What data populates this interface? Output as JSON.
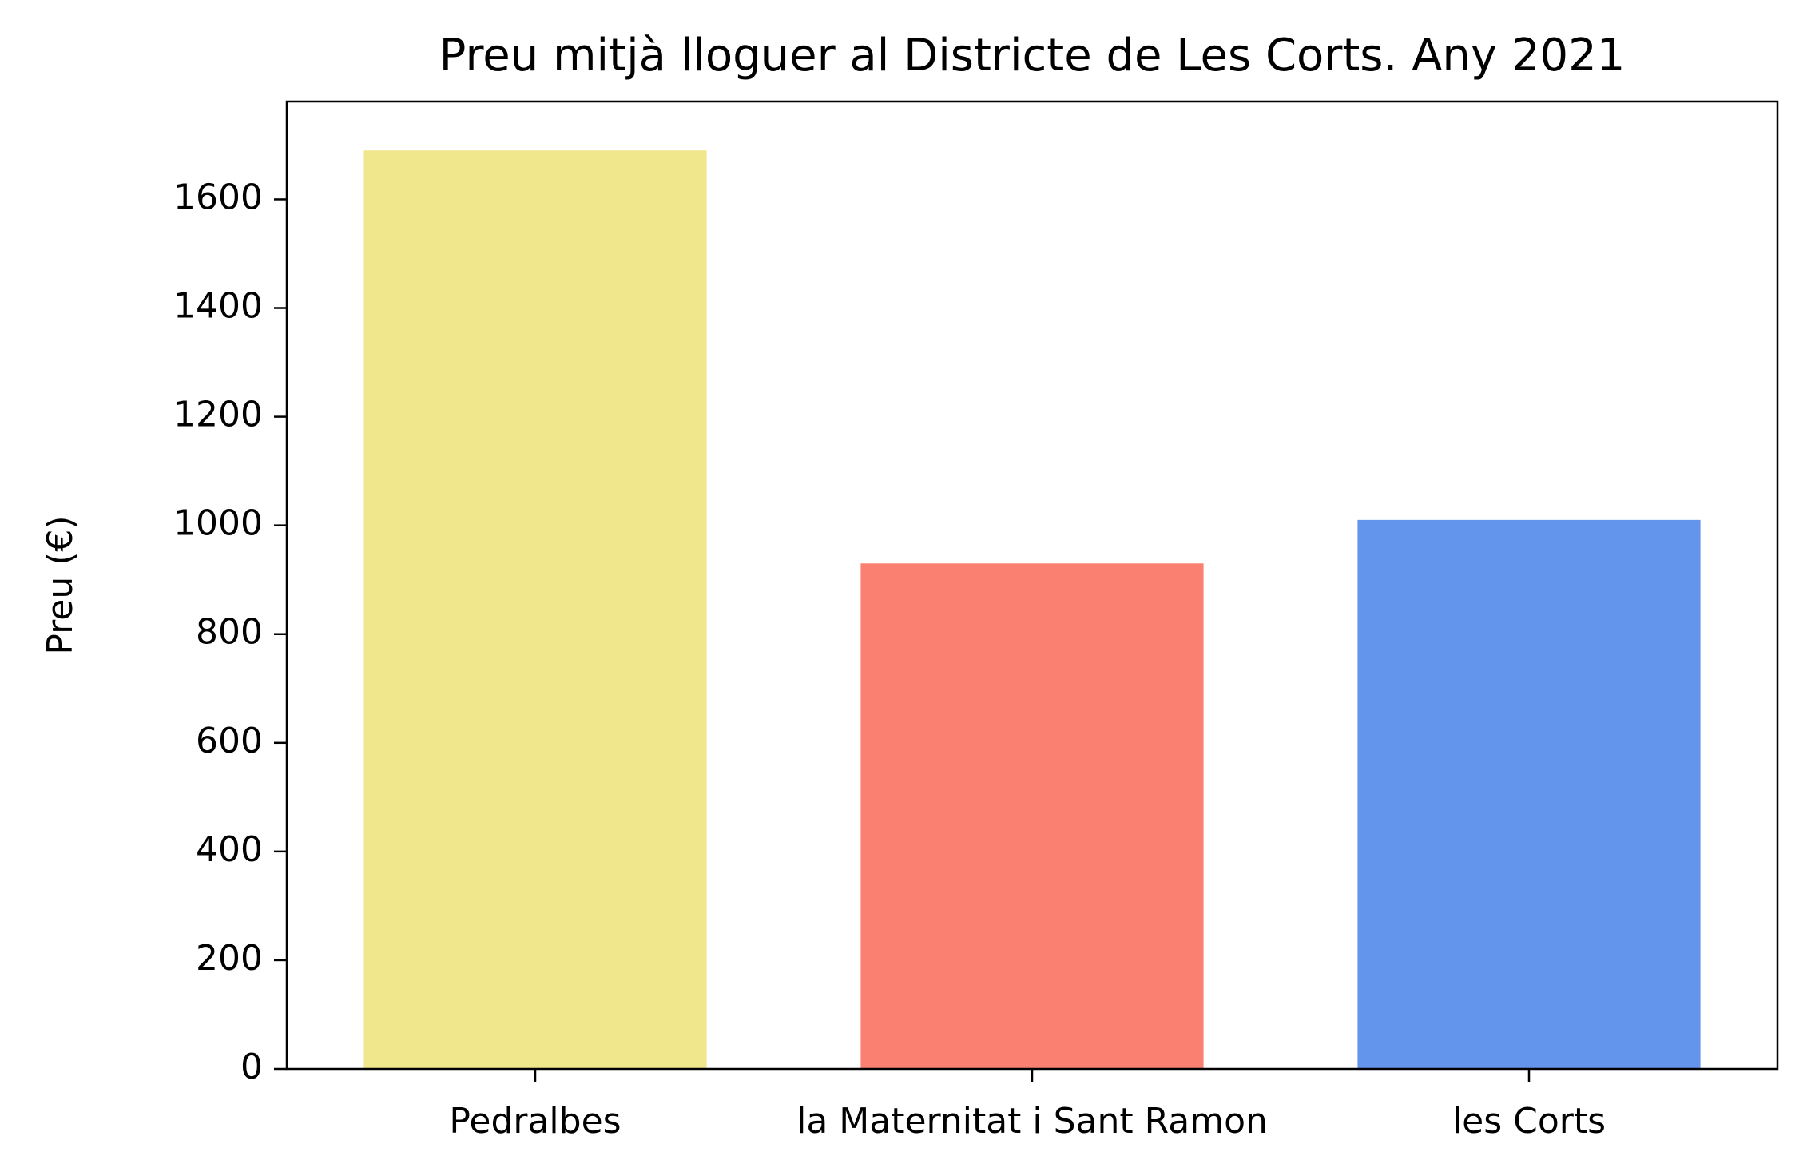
{
  "chart_data": {
    "type": "bar",
    "title": "Preu mitjà lloguer al Districte de Les Corts. Any 2021",
    "xlabel": "",
    "ylabel": "Preu (€)",
    "categories": [
      "Pedralbes",
      "la Maternitat i Sant Ramon",
      "les Corts"
    ],
    "values": [
      1690,
      930,
      1010
    ],
    "colors": [
      "#F0E68C",
      "#FA8072",
      "#6495ED"
    ],
    "ylim": [
      0,
      1780
    ],
    "yticks": [
      0,
      200,
      400,
      600,
      800,
      1000,
      1200,
      1400,
      1600
    ],
    "grid": false,
    "legend": "none"
  }
}
